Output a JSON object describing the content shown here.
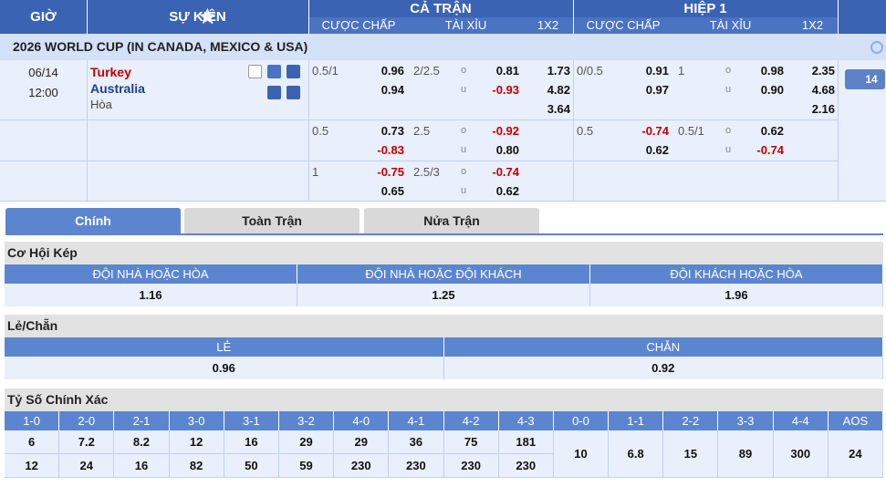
{
  "header": {
    "time": "GIỜ",
    "event": "SỰ KIỆN",
    "full_match": {
      "title": "CẢ TRẬN",
      "columns": [
        "CƯỢC CHẤP",
        "TÀI XỈU",
        "1X2"
      ]
    },
    "half1": {
      "title": "HIỆP 1",
      "columns": [
        "CƯỢC CHẤP",
        "TÀI XỈU",
        "1X2"
      ]
    },
    "over": "o",
    "under": "u"
  },
  "league": "2026 WORLD CUP (IN CANADA, MEXICO & USA)",
  "match": {
    "date": "06/14",
    "time": "12:00",
    "home": "Turkey",
    "away": "Australia",
    "draw": "Hòa",
    "more_markets": "14",
    "lines": [
      {
        "full": {
          "handicap": "0.5/1",
          "home": "0.96",
          "away": "0.94",
          "total": "2/2.5",
          "over": "0.81",
          "under": "-0.93",
          "x12": [
            "1.73",
            "4.82",
            "3.64"
          ]
        },
        "half1": {
          "handicap": "0/0.5",
          "home": "0.91",
          "away": "0.97",
          "total": "1",
          "over": "0.98",
          "under": "0.90",
          "x12": [
            "2.35",
            "4.68",
            "2.16"
          ]
        }
      },
      {
        "full": {
          "handicap": "0.5",
          "home": "0.73",
          "away": "-0.83",
          "total": "2.5",
          "over": "-0.92",
          "under": "0.80"
        },
        "half1": {
          "handicap": "0.5",
          "home": "-0.74",
          "away": "0.62",
          "total": "0.5/1",
          "over": "0.62",
          "under": "-0.74"
        }
      },
      {
        "full": {
          "handicap": "1",
          "home": "-0.75",
          "away": "0.65",
          "total": "2.5/3",
          "over": "-0.74",
          "under": "0.62"
        }
      }
    ]
  },
  "tabs": [
    "Chính",
    "Toàn Trận",
    "Nửa Trận"
  ],
  "double_chance": {
    "title": "Cơ Hội Kép",
    "headers": [
      "ĐỘI NHÀ HOẶC HÒA",
      "ĐỘI NHÀ HOẶC ĐỘI KHÁCH",
      "ĐỘI KHÁCH HOẶC HÒA"
    ],
    "values": [
      "1.16",
      "1.25",
      "1.96"
    ]
  },
  "odd_even": {
    "title": "Lẻ/Chẵn",
    "headers": [
      "LẺ",
      "CHẴN"
    ],
    "values": [
      "0.96",
      "0.92"
    ]
  },
  "correct_score": {
    "title": "Tỷ Số Chính Xác",
    "columns": [
      {
        "label": "1-0",
        "values": [
          "6",
          "12"
        ]
      },
      {
        "label": "2-0",
        "values": [
          "7.2",
          "24"
        ]
      },
      {
        "label": "2-1",
        "values": [
          "8.2",
          "16"
        ]
      },
      {
        "label": "3-0",
        "values": [
          "12",
          "82"
        ]
      },
      {
        "label": "3-1",
        "values": [
          "16",
          "50"
        ]
      },
      {
        "label": "3-2",
        "values": [
          "29",
          "59"
        ]
      },
      {
        "label": "4-0",
        "values": [
          "29",
          "230"
        ]
      },
      {
        "label": "4-1",
        "values": [
          "36",
          "230"
        ]
      },
      {
        "label": "4-2",
        "values": [
          "75",
          "230"
        ]
      },
      {
        "label": "4-3",
        "values": [
          "181",
          "230"
        ]
      },
      {
        "label": "0-0",
        "values": [
          "10"
        ]
      },
      {
        "label": "1-1",
        "values": [
          "6.8"
        ]
      },
      {
        "label": "2-2",
        "values": [
          "15"
        ]
      },
      {
        "label": "3-3",
        "values": [
          "89"
        ]
      },
      {
        "label": "4-4",
        "values": [
          "300"
        ]
      },
      {
        "label": "AOS",
        "values": [
          "24"
        ]
      }
    ]
  }
}
